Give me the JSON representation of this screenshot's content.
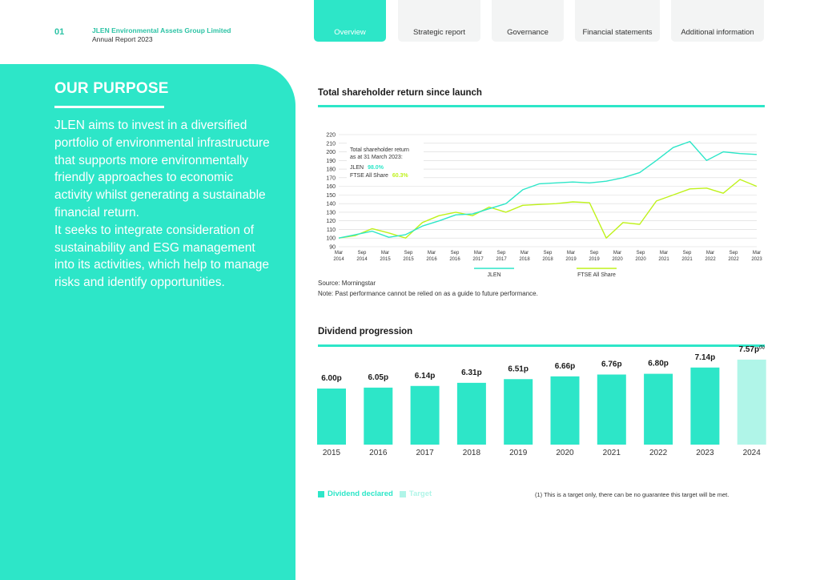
{
  "header": {
    "page_number": "01",
    "company": "JLEN Environmental Assets Group Limited",
    "report": "Annual Report 2023"
  },
  "nav": {
    "tabs": [
      {
        "label": "Overview",
        "active": true
      },
      {
        "label": "Strategic report",
        "active": false
      },
      {
        "label": "Governance",
        "active": false
      },
      {
        "label": "Financial statements",
        "active": false
      },
      {
        "label": "Additional information",
        "active": false
      }
    ]
  },
  "purpose": {
    "title": "OUR PURPOSE",
    "paragraph1": "JLEN aims to invest in a diversified portfolio of environmental infrastructure that supports more environmentally friendly approaches to economic activity whilst generating a sustainable financial return.",
    "paragraph2": "It seeks to integrate consideration of sustainability and ESG management into its activities, which help to manage risks and identify opportunities."
  },
  "tsr": {
    "title": "Total shareholder return since launch",
    "source": "Source: Morningstar",
    "note": "Note: Past performance cannot be relied on as a guide to future performance.",
    "annotation": {
      "line1": "Total shareholder return",
      "line2": "as at 31 March 2023:",
      "jlen_label": "JLEN",
      "jlen_value": "98.0%",
      "ftse_label": "FTSE All Share",
      "ftse_value": "60.3%"
    }
  },
  "dividend": {
    "title": "Dividend progression",
    "legend_declared": "Dividend declared",
    "legend_target": "Target",
    "footnote": "(1)   This is a target only, there can be no guarantee this target will be met."
  },
  "colors": {
    "teal": "#2de6c8",
    "lime": "#bff21b",
    "target": "#b0f5e8",
    "nav_bg": "#f3f4f4"
  },
  "chart_data": [
    {
      "type": "line",
      "title": "Total shareholder return since launch",
      "ylim": [
        90,
        220
      ],
      "yticks": [
        90,
        100,
        110,
        120,
        130,
        140,
        150,
        160,
        170,
        180,
        190,
        200,
        210,
        220
      ],
      "x_tick_labels": [
        [
          "Mar",
          "2014"
        ],
        [
          "Sep",
          "2014"
        ],
        [
          "Mar",
          "2015"
        ],
        [
          "Sep",
          "2015"
        ],
        [
          "Mar",
          "2016"
        ],
        [
          "Sep",
          "2016"
        ],
        [
          "Mar",
          "2017"
        ],
        [
          "Sep",
          "2017"
        ],
        [
          "Mar",
          "2018"
        ],
        [
          "Sep",
          "2018"
        ],
        [
          "Mar",
          "2019"
        ],
        [
          "Sep",
          "2019"
        ],
        [
          "Mar",
          "2020"
        ],
        [
          "Sep",
          "2020"
        ],
        [
          "Mar",
          "2021"
        ],
        [
          "Sep",
          "2021"
        ],
        [
          "Mar",
          "2022"
        ],
        [
          "Sep",
          "2022"
        ],
        [
          "Mar",
          "2023"
        ]
      ],
      "legend": [
        "JLEN",
        "FTSE All Share"
      ],
      "series": [
        {
          "name": "JLEN",
          "color": "#2de6c8",
          "values": [
            100,
            104,
            108,
            101,
            104,
            114,
            120,
            127,
            128,
            134,
            140,
            156,
            163,
            164,
            165,
            164,
            166,
            170,
            176,
            190,
            205,
            212,
            190,
            200,
            198,
            197
          ]
        },
        {
          "name": "FTSE All Share",
          "color": "#bff21b",
          "values": [
            100,
            103,
            111,
            106,
            100,
            118,
            126,
            130,
            126,
            136,
            130,
            138,
            139,
            140,
            142,
            141,
            100,
            118,
            116,
            143,
            150,
            157,
            158,
            152,
            168,
            160
          ]
        }
      ]
    },
    {
      "type": "bar",
      "title": "Dividend progression",
      "categories": [
        "2015",
        "2016",
        "2017",
        "2018",
        "2019",
        "2020",
        "2021",
        "2022",
        "2023",
        "2024"
      ],
      "values": [
        6.0,
        6.05,
        6.14,
        6.31,
        6.51,
        6.66,
        6.76,
        6.8,
        7.14,
        7.57
      ],
      "labels": [
        "6.00p",
        "6.05p",
        "6.14p",
        "6.31p",
        "6.51p",
        "6.66p",
        "6.76p",
        "6.80p",
        "7.14p",
        "7.57p"
      ],
      "label_superscripts": [
        "",
        "",
        "",
        "",
        "",
        "",
        "",
        "",
        "",
        "(1)"
      ],
      "kind": [
        "declared",
        "declared",
        "declared",
        "declared",
        "declared",
        "declared",
        "declared",
        "declared",
        "declared",
        "target"
      ]
    }
  ]
}
